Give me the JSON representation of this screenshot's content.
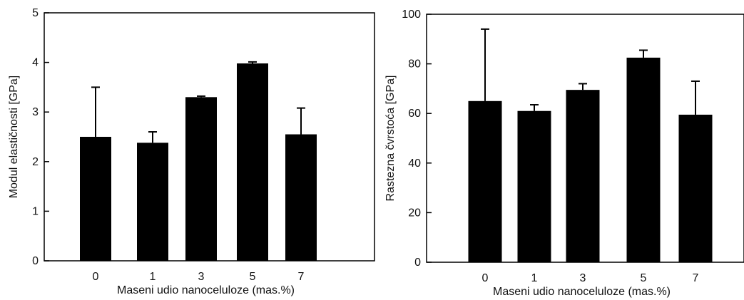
{
  "chart_data": [
    {
      "type": "bar",
      "categories": [
        "0",
        "1",
        "3",
        "5",
        "7"
      ],
      "values": [
        2.5,
        2.38,
        3.3,
        3.98,
        2.55
      ],
      "error_upper": [
        1.0,
        0.22,
        0.02,
        0.03,
        0.53
      ],
      "xlabel": "Maseni udio nanoceluloze (mas.%)",
      "ylabel": "Modul elastičnosti [GPa]",
      "ylim": [
        0,
        5
      ],
      "yticks": [
        "0",
        "1",
        "2",
        "3",
        "4",
        "5"
      ],
      "bar_color": "#000000"
    },
    {
      "type": "bar",
      "categories": [
        "0",
        "1",
        "3",
        "5",
        "7"
      ],
      "values": [
        65,
        61,
        69.5,
        82.5,
        59.5
      ],
      "error_upper": [
        29,
        2.5,
        2.5,
        3,
        13.5
      ],
      "xlabel": "Maseni udio nanoceluloze (mas.%)",
      "ylabel": "Rastezna čvrstoća [GPa]",
      "ylim": [
        0,
        100
      ],
      "yticks": [
        "0",
        "20",
        "40",
        "60",
        "80",
        "100"
      ],
      "bar_color": "#000000"
    }
  ]
}
